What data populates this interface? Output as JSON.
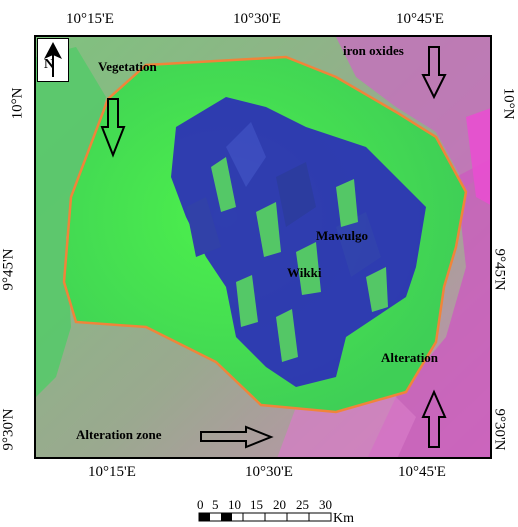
{
  "coordinates": {
    "top": [
      "10°15'E",
      "10°30'E",
      "10°45'E"
    ],
    "bottom": [
      "10°15'E",
      "10°30'E",
      "10°45'E"
    ],
    "left": [
      "10°N",
      "9°45'N",
      "9°30'N"
    ],
    "right": [
      "10°N",
      "9°45'N",
      "9°30'N"
    ]
  },
  "labels": {
    "vegetation": "Vegetation",
    "iron_oxides": "iron oxides",
    "mawulgo": "Mawulgo",
    "wikki": "Wikki",
    "alteration": "Alteration",
    "alteration_zone": "Alteration zone"
  },
  "north_arrow": {
    "letter": "N"
  },
  "scale": {
    "ticks": [
      "0",
      "5",
      "10",
      "15",
      "20",
      "25",
      "30"
    ],
    "unit": "Km"
  },
  "colors": {
    "boundary": "#f0843a",
    "vegetation": "#45e84a",
    "water_dark": "#2a2fb0",
    "alteration_magenta": "#d24fc8"
  }
}
